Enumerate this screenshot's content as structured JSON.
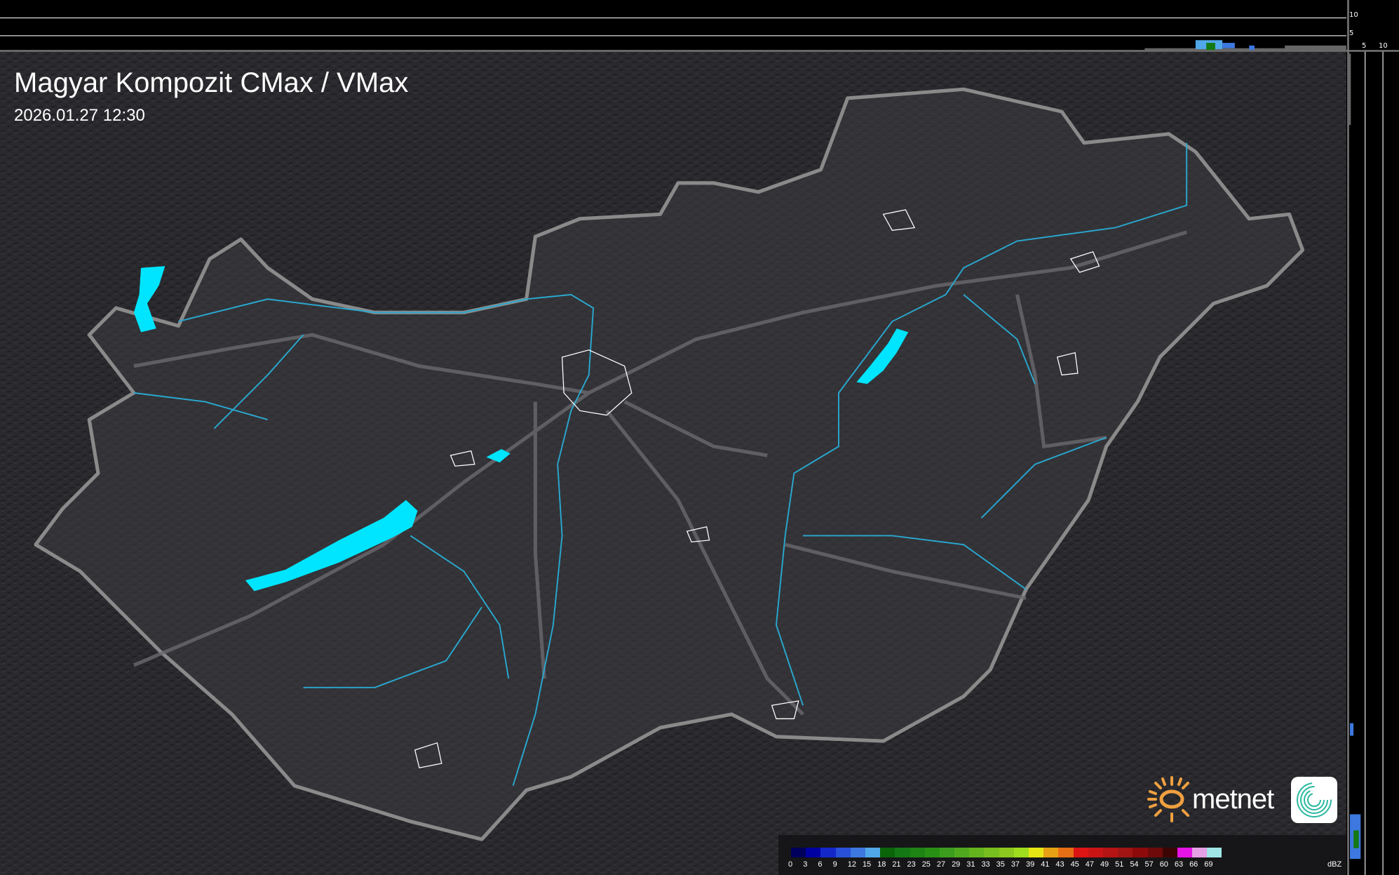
{
  "header": {
    "title": "Magyar Kompozit CMax / VMax",
    "timestamp": "2026.01.27 12:30"
  },
  "top_profile": {
    "height_labels": [
      "10",
      "5"
    ]
  },
  "side_profile": {
    "height_labels": [
      "5",
      "10"
    ]
  },
  "logo": {
    "text": "metnet",
    "accent": "#f0a040"
  },
  "legend": {
    "unit": "dBZ",
    "items": [
      {
        "label": "0",
        "color": "#00005a"
      },
      {
        "label": "3",
        "color": "#0000a0"
      },
      {
        "label": "6",
        "color": "#1428c8"
      },
      {
        "label": "9",
        "color": "#2850d8"
      },
      {
        "label": "12",
        "color": "#3c78e0"
      },
      {
        "label": "15",
        "color": "#50a8e8"
      },
      {
        "label": "18",
        "color": "#0a640a"
      },
      {
        "label": "21",
        "color": "#147814"
      },
      {
        "label": "23",
        "color": "#1e8414"
      },
      {
        "label": "25",
        "color": "#289014"
      },
      {
        "label": "27",
        "color": "#3c9c1e"
      },
      {
        "label": "29",
        "color": "#50a81e"
      },
      {
        "label": "31",
        "color": "#64b41e"
      },
      {
        "label": "33",
        "color": "#78be1e"
      },
      {
        "label": "35",
        "color": "#8cc81e"
      },
      {
        "label": "37",
        "color": "#a0dc1e"
      },
      {
        "label": "39",
        "color": "#e6e614"
      },
      {
        "label": "41",
        "color": "#e6a014"
      },
      {
        "label": "43",
        "color": "#e66e14"
      },
      {
        "label": "45",
        "color": "#dc1414"
      },
      {
        "label": "47",
        "color": "#c81414"
      },
      {
        "label": "49",
        "color": "#b41414"
      },
      {
        "label": "51",
        "color": "#a01414"
      },
      {
        "label": "54",
        "color": "#8c0a0a"
      },
      {
        "label": "57",
        "color": "#6e0a0a"
      },
      {
        "label": "60",
        "color": "#3c0505"
      },
      {
        "label": "63",
        "color": "#e614e6"
      },
      {
        "label": "66",
        "color": "#e6a0e6"
      },
      {
        "label": "69",
        "color": "#a0e6e6"
      }
    ]
  },
  "colors": {
    "water": "#00e5ff",
    "border": "#8a8a8a",
    "river": "#2aa8d0",
    "land": "#2c2c30"
  }
}
